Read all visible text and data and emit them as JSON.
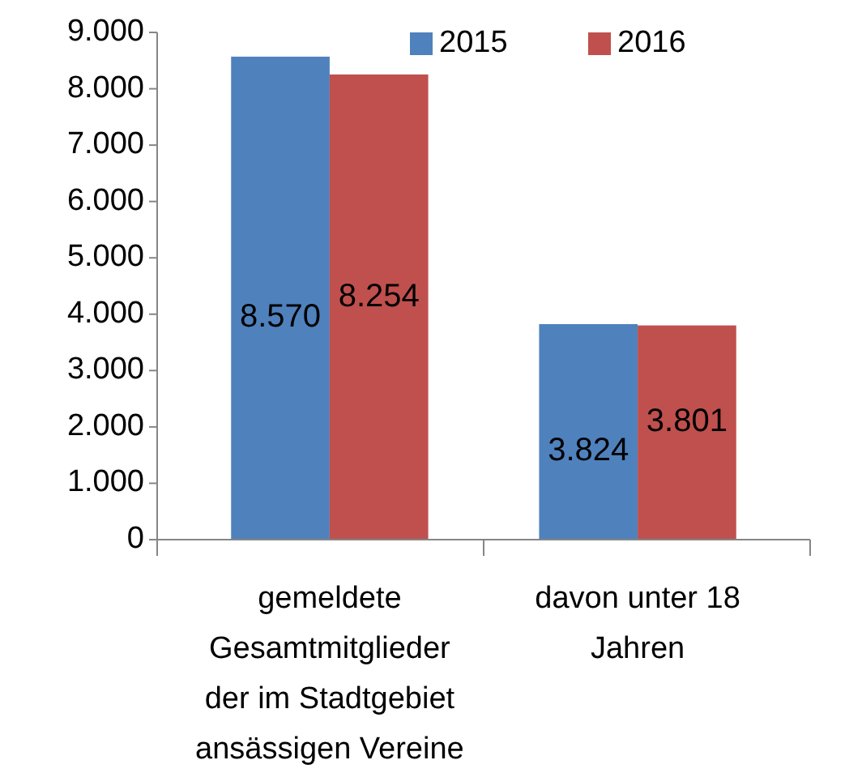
{
  "chart_data": {
    "type": "bar",
    "categories": [
      "gemeldete Gesamtmitglieder der im Stadtgebiet ansässigen Vereine",
      "davon unter 18 Jahren"
    ],
    "series": [
      {
        "name": "2015",
        "color": "#4f81bd",
        "values": [
          8570,
          3824
        ],
        "value_labels": [
          "8.570",
          "3.824"
        ]
      },
      {
        "name": "2016",
        "color": "#c0504d",
        "values": [
          8254,
          3801
        ],
        "value_labels": [
          "8.254",
          "3.801"
        ]
      }
    ],
    "ylim": [
      0,
      9000
    ],
    "yticks": [
      {
        "value": 0,
        "label": "0"
      },
      {
        "value": 1000,
        "label": "1.000"
      },
      {
        "value": 2000,
        "label": "2.000"
      },
      {
        "value": 3000,
        "label": "3.000"
      },
      {
        "value": 4000,
        "label": "4.000"
      },
      {
        "value": 5000,
        "label": "5.000"
      },
      {
        "value": 6000,
        "label": "6.000"
      },
      {
        "value": 7000,
        "label": "7.000"
      },
      {
        "value": 8000,
        "label": "8.000"
      },
      {
        "value": 9000,
        "label": "9.000"
      }
    ],
    "grid": false,
    "legend": "top"
  }
}
